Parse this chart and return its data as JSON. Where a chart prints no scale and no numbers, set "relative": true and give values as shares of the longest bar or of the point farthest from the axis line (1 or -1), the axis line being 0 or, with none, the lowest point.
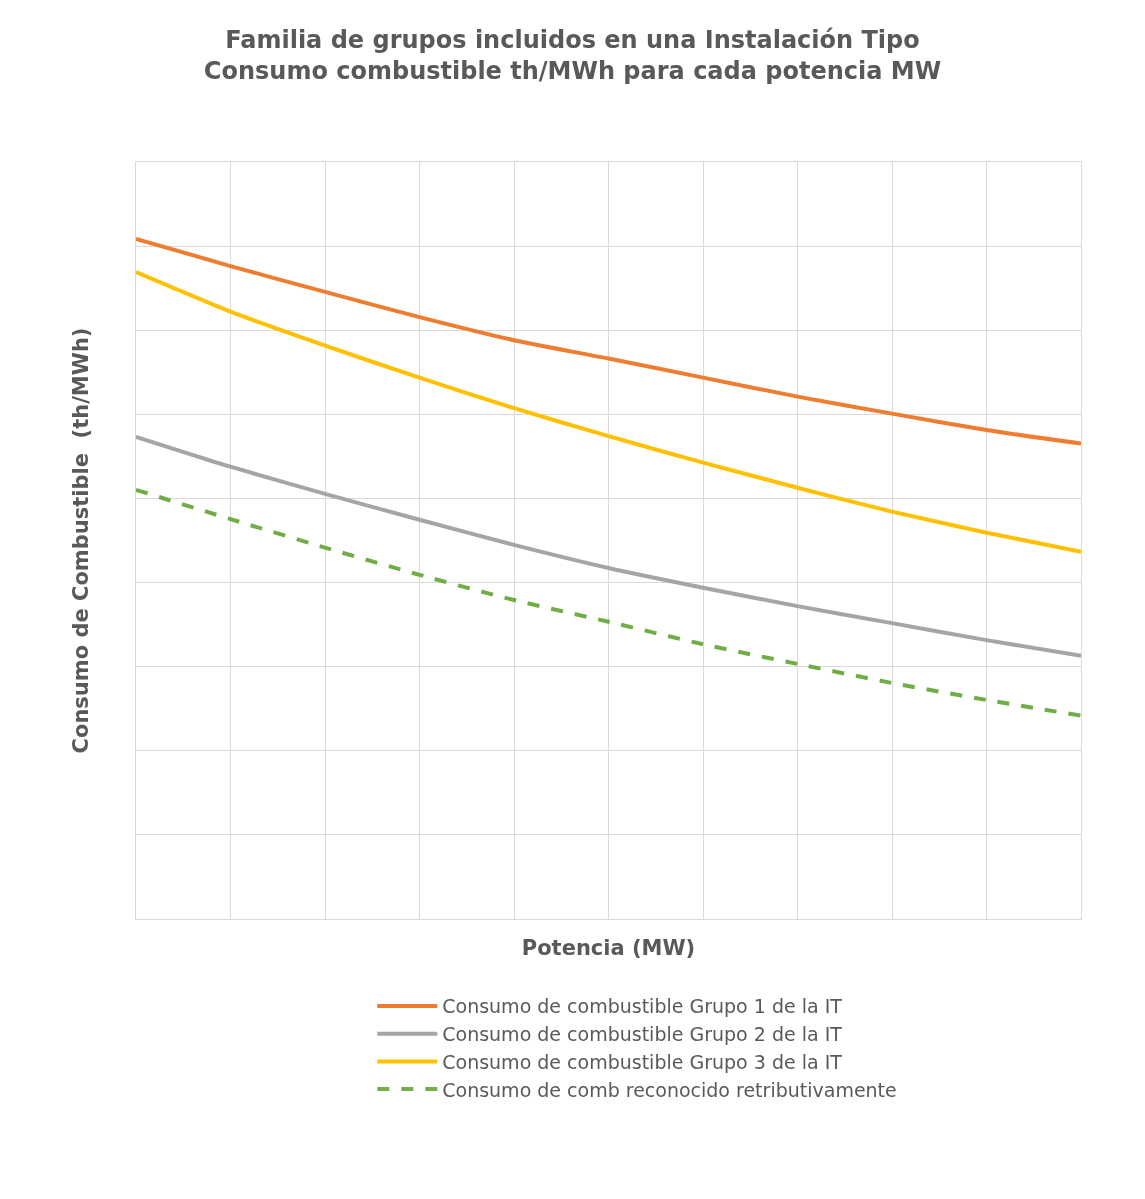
{
  "chart_data": {
    "type": "line",
    "title": "Familia de grupos incluidos en una Instalación Tipo\nConsumo combustible th/MWh para cada potencia MW",
    "xlabel": "Potencia (MW)",
    "ylabel": "Consumo de Combustible  (th/MWh)",
    "relative": true,
    "grid": true,
    "legend": "bottom",
    "marker": "none",
    "categories": [
      null,
      null,
      null,
      null,
      null,
      null,
      null,
      null,
      null,
      null,
      null
    ],
    "series": [
      {
        "name": "Consumo de combustible Grupo 1 de la IT",
        "color": "#ed7d31",
        "line_style": "solid",
        "values": [
          1,
          0.96,
          0.922,
          0.885,
          0.851,
          0.824,
          0.796,
          0.768,
          0.743,
          0.719,
          0.699
        ]
      },
      {
        "name": "Consumo de combustible Grupo 2 de la IT",
        "color": "#a5a5a5",
        "line_style": "solid",
        "values": [
          0.709,
          0.665,
          0.625,
          0.587,
          0.55,
          0.516,
          0.487,
          0.46,
          0.435,
          0.41,
          0.387
        ]
      },
      {
        "name": "Consumo de combustible Grupo 3 de la IT",
        "color": "#ffc000",
        "line_style": "solid",
        "values": [
          0.951,
          0.893,
          0.843,
          0.796,
          0.751,
          0.71,
          0.671,
          0.634,
          0.599,
          0.568,
          0.54
        ]
      },
      {
        "name": "Consumo de comb reconocido retributivamente",
        "color": "#70ad47",
        "line_style": "dashed",
        "values": [
          0.631,
          0.588,
          0.546,
          0.506,
          0.469,
          0.437,
          0.404,
          0.375,
          0.347,
          0.322,
          0.299
        ]
      }
    ]
  }
}
